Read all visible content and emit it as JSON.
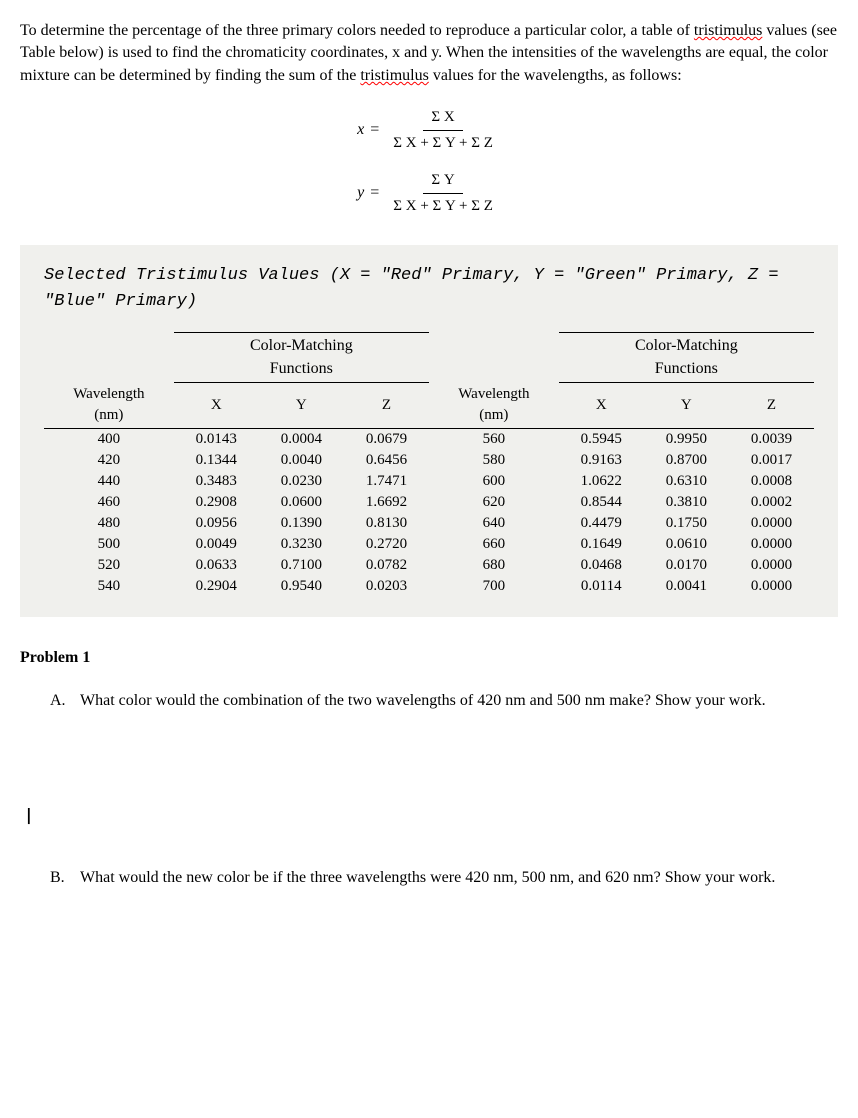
{
  "intro": {
    "part1": "To determine the percentage of the three primary colors needed to reproduce a particular color, a table of ",
    "tristimulus1": "tristimulus",
    "part2": " values (see Table below) is used to find the chromaticity coordinates, x and y. When the intensities of the wavelengths are equal, the color mixture can be determined by finding the sum of the ",
    "tristimulus2": "tristimulus",
    "part3": " values for the wavelengths, as follows:"
  },
  "formulas": {
    "x": {
      "var": "x",
      "num": "Σ X",
      "den": "Σ X + Σ Y + Σ Z"
    },
    "y": {
      "var": "y",
      "num": "Σ Y",
      "den": "Σ X + Σ Y + Σ Z"
    }
  },
  "tableTitle": "Selected Tristimulus Values (X = \"Red\" Primary, Y = \"Green\" Primary, Z = \"Blue\" Primary)",
  "headers": {
    "colorMatching": "Color-Matching Functions",
    "wavelength": "Wavelength (nm)",
    "x": "X",
    "y": "Y",
    "z": "Z"
  },
  "tableLeft": {
    "rows": [
      {
        "wl": "400",
        "x": "0.0143",
        "y": "0.0004",
        "z": "0.0679"
      },
      {
        "wl": "420",
        "x": "0.1344",
        "y": "0.0040",
        "z": "0.6456"
      },
      {
        "wl": "440",
        "x": "0.3483",
        "y": "0.0230",
        "z": "1.7471"
      },
      {
        "wl": "460",
        "x": "0.2908",
        "y": "0.0600",
        "z": "1.6692"
      },
      {
        "wl": "480",
        "x": "0.0956",
        "y": "0.1390",
        "z": "0.8130"
      },
      {
        "wl": "500",
        "x": "0.0049",
        "y": "0.3230",
        "z": "0.2720"
      },
      {
        "wl": "520",
        "x": "0.0633",
        "y": "0.7100",
        "z": "0.0782"
      },
      {
        "wl": "540",
        "x": "0.2904",
        "y": "0.9540",
        "z": "0.0203"
      }
    ]
  },
  "tableRight": {
    "rows": [
      {
        "wl": "560",
        "x": "0.5945",
        "y": "0.9950",
        "z": "0.0039"
      },
      {
        "wl": "580",
        "x": "0.9163",
        "y": "0.8700",
        "z": "0.0017"
      },
      {
        "wl": "600",
        "x": "1.0622",
        "y": "0.6310",
        "z": "0.0008"
      },
      {
        "wl": "620",
        "x": "0.8544",
        "y": "0.3810",
        "z": "0.0002"
      },
      {
        "wl": "640",
        "x": "0.4479",
        "y": "0.1750",
        "z": "0.0000"
      },
      {
        "wl": "660",
        "x": "0.1649",
        "y": "0.0610",
        "z": "0.0000"
      },
      {
        "wl": "680",
        "x": "0.0468",
        "y": "0.0170",
        "z": "0.0000"
      },
      {
        "wl": "700",
        "x": "0.0114",
        "y": "0.0041",
        "z": "0.0000"
      }
    ]
  },
  "problem": {
    "heading": "Problem 1",
    "a": {
      "letter": "A.",
      "text": "What color would the combination of the two wavelengths of 420 nm and 500 nm make? Show your work."
    },
    "b": {
      "letter": "B.",
      "text": "What would the new color be if the three wavelengths were 420 nm, 500 nm, and 620 nm?  Show your work."
    }
  },
  "cursor": "|"
}
